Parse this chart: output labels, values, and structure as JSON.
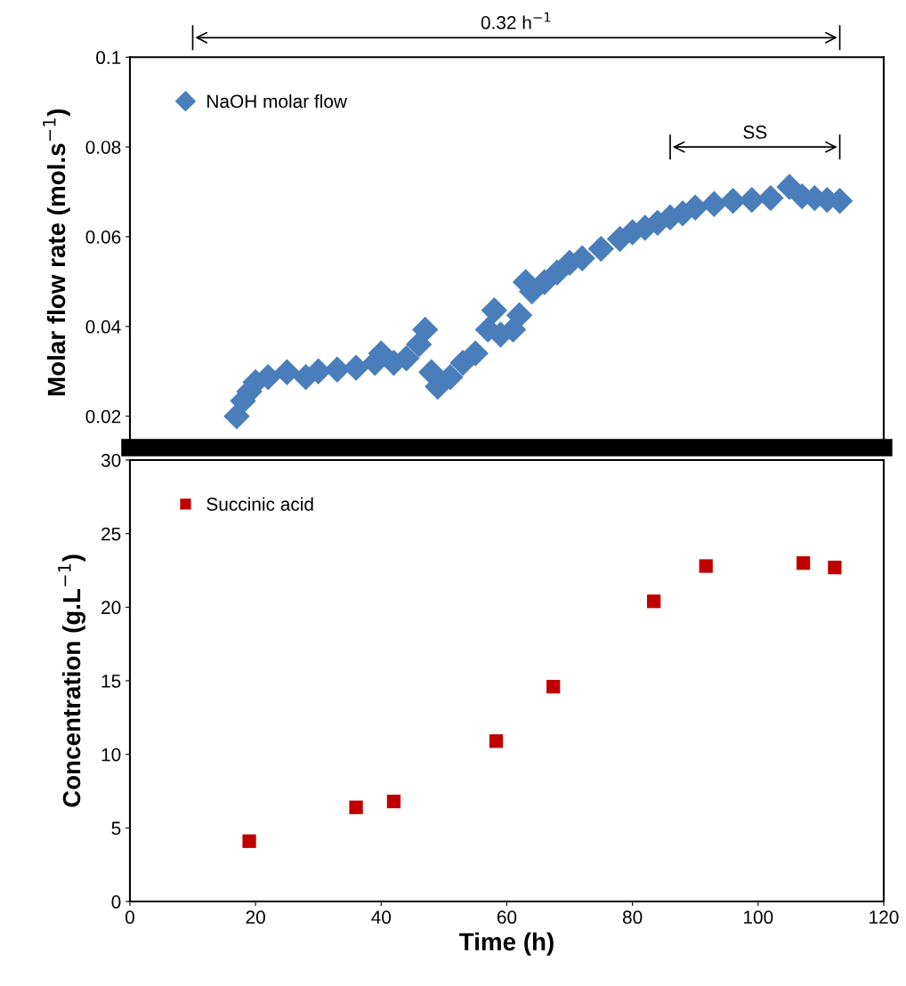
{
  "chart_data": [
    {
      "type": "scatter",
      "ylabel": "Molar flow rate (mol.s$^{−1}$)",
      "xlim": [
        0,
        120
      ],
      "ylim": [
        0.013,
        0.1
      ],
      "yticks": [
        0.02,
        0.04,
        0.06,
        0.08,
        0.1
      ],
      "tick_labels": "y",
      "legend": "top left",
      "marker": "diamond",
      "grid": false,
      "annotations": [
        "0.32 h$^{−1}$",
        "SS"
      ],
      "series": [
        {
          "name": "NaOH molar flow",
          "color": "#4a7ebb",
          "x": [
            17,
            18,
            19,
            20,
            22,
            25,
            28,
            30,
            33,
            36,
            39,
            40,
            42,
            44,
            46,
            47,
            48,
            49,
            51,
            53,
            55,
            57,
            58,
            59,
            61,
            62,
            63,
            64,
            66,
            68,
            70,
            72,
            75,
            78,
            80,
            82,
            84,
            86,
            88,
            90,
            93,
            96,
            99,
            102,
            105,
            107,
            109,
            111,
            113
          ],
          "values": [
            0.02,
            0.0234,
            0.0255,
            0.0276,
            0.0287,
            0.0298,
            0.0287,
            0.03,
            0.0304,
            0.0308,
            0.0319,
            0.034,
            0.0319,
            0.0329,
            0.036,
            0.0393,
            0.0298,
            0.0266,
            0.0287,
            0.0319,
            0.034,
            0.0393,
            0.0436,
            0.0382,
            0.0393,
            0.0425,
            0.0499,
            0.0478,
            0.0499,
            0.052,
            0.0542,
            0.0552,
            0.0573,
            0.0595,
            0.061,
            0.062,
            0.0631,
            0.0643,
            0.0652,
            0.0665,
            0.0673,
            0.068,
            0.0682,
            0.0686,
            0.0711,
            0.069,
            0.0686,
            0.0682,
            0.068
          ]
        }
      ]
    },
    {
      "type": "scatter",
      "xlabel": "Time (h)",
      "ylabel": "Concentration (g.L$^{−1}$)",
      "xlim": [
        0,
        120
      ],
      "xticks": [
        0,
        20,
        40,
        60,
        80,
        100,
        120
      ],
      "ylim": [
        0,
        30
      ],
      "yticks": [
        0,
        5,
        10,
        15,
        20,
        25,
        30
      ],
      "legend": "top left",
      "marker": "square",
      "grid": false,
      "series": [
        {
          "name": "Succinic acid",
          "color": "#c00000",
          "x": [
            19,
            36,
            42,
            58.3,
            67.4,
            83.4,
            91.7,
            107.2,
            112.2
          ],
          "values": [
            4.1,
            6.4,
            6.8,
            10.9,
            14.6,
            20.4,
            22.8,
            23.0,
            22.7
          ]
        }
      ]
    }
  ]
}
